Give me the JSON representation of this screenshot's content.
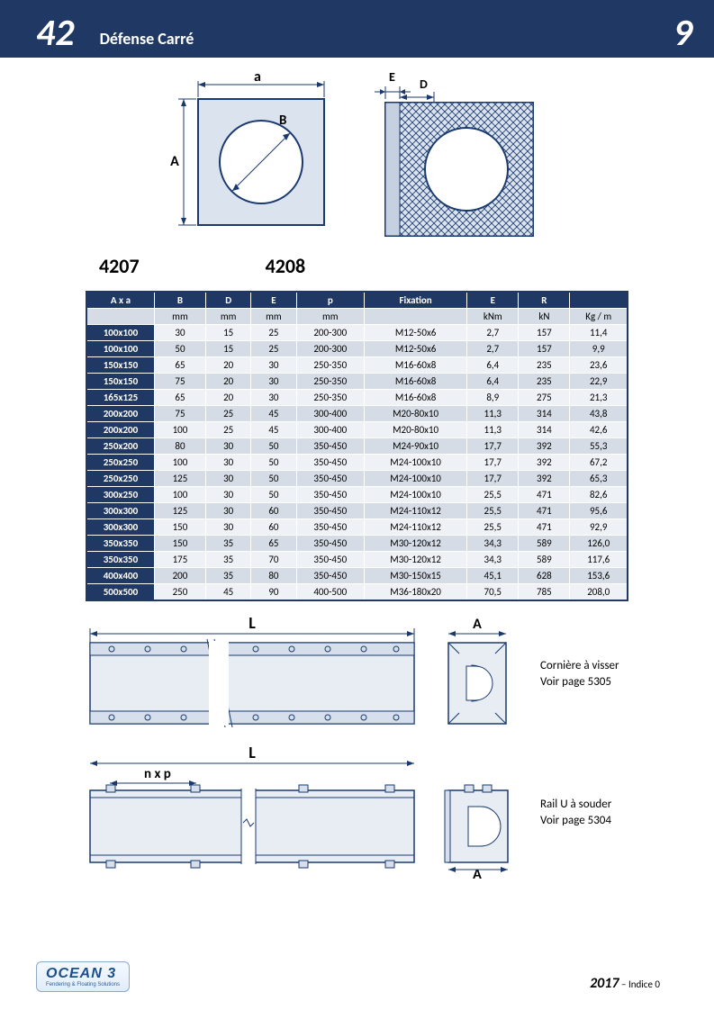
{
  "header": {
    "section_number": "42",
    "title": "Défense Carré",
    "page_number": "9"
  },
  "top_diagrams": {
    "left": {
      "code": "4207",
      "dim_a": "a",
      "dim_A": "A",
      "dim_B": "B"
    },
    "right": {
      "code": "4208",
      "dim_E": "E",
      "dim_D": "D"
    }
  },
  "table": {
    "header_row1": [
      "A x a",
      "B",
      "D",
      "E",
      "p",
      "Fixation",
      "E",
      "R",
      ""
    ],
    "header_row2": [
      "",
      "mm",
      "mm",
      "mm",
      "mm",
      "",
      "kNm",
      "kN",
      "Kg / m"
    ],
    "rows": [
      [
        "100x100",
        "30",
        "15",
        "25",
        "200-300",
        "M12-50x6",
        "2,7",
        "157",
        "11,4"
      ],
      [
        "100x100",
        "50",
        "15",
        "25",
        "200-300",
        "M12-50x6",
        "2,7",
        "157",
        "9,9"
      ],
      [
        "150x150",
        "65",
        "20",
        "30",
        "250-350",
        "M16-60x8",
        "6,4",
        "235",
        "23,6"
      ],
      [
        "150x150",
        "75",
        "20",
        "30",
        "250-350",
        "M16-60x8",
        "6,4",
        "235",
        "22,9"
      ],
      [
        "165x125",
        "65",
        "20",
        "30",
        "250-350",
        "M16-60x8",
        "8,9",
        "275",
        "21,3"
      ],
      [
        "200x200",
        "75",
        "25",
        "45",
        "300-400",
        "M20-80x10",
        "11,3",
        "314",
        "43,8"
      ],
      [
        "200x200",
        "100",
        "25",
        "45",
        "300-400",
        "M20-80x10",
        "11,3",
        "314",
        "42,6"
      ],
      [
        "250x200",
        "80",
        "30",
        "50",
        "350-450",
        "M24-90x10",
        "17,7",
        "392",
        "55,3"
      ],
      [
        "250x250",
        "100",
        "30",
        "50",
        "350-450",
        "M24-100x10",
        "17,7",
        "392",
        "67,2"
      ],
      [
        "250x250",
        "125",
        "30",
        "50",
        "350-450",
        "M24-100x10",
        "17,7",
        "392",
        "65,3"
      ],
      [
        "300x250",
        "100",
        "30",
        "50",
        "350-450",
        "M24-100x10",
        "25,5",
        "471",
        "82,6"
      ],
      [
        "300x300",
        "125",
        "30",
        "60",
        "350-450",
        "M24-110x12",
        "25,5",
        "471",
        "95,6"
      ],
      [
        "300x300",
        "150",
        "30",
        "60",
        "350-450",
        "M24-110x12",
        "25,5",
        "471",
        "92,9"
      ],
      [
        "350x350",
        "150",
        "35",
        "65",
        "350-450",
        "M30-120x12",
        "34,3",
        "589",
        "126,0"
      ],
      [
        "350x350",
        "175",
        "35",
        "70",
        "350-450",
        "M30-120x12",
        "34,3",
        "589",
        "117,6"
      ],
      [
        "400x400",
        "200",
        "35",
        "80",
        "350-450",
        "M30-150x15",
        "45,1",
        "628",
        "153,6"
      ],
      [
        "500x500",
        "250",
        "45",
        "90",
        "400-500",
        "M36-180x20",
        "70,5",
        "785",
        "208,0"
      ]
    ],
    "colors": {
      "header_bg": "#203864",
      "band_light": "#eef1f5",
      "band_dark": "#d6dce5",
      "border": "#ffffff"
    }
  },
  "lower": {
    "dim_L": "L",
    "dim_A": "A",
    "dim_nxp": "n x p",
    "note1_line1": "Cornière à visser",
    "note1_line2": "Voir page 5305",
    "note2_line1": "Rail U à souder",
    "note2_line2": "Voir page 5304"
  },
  "footer": {
    "logo_main": "OCEAN 3",
    "logo_sub": "Fendering & Floating Solutions",
    "year": "2017",
    "indice": " – Indice 0"
  }
}
